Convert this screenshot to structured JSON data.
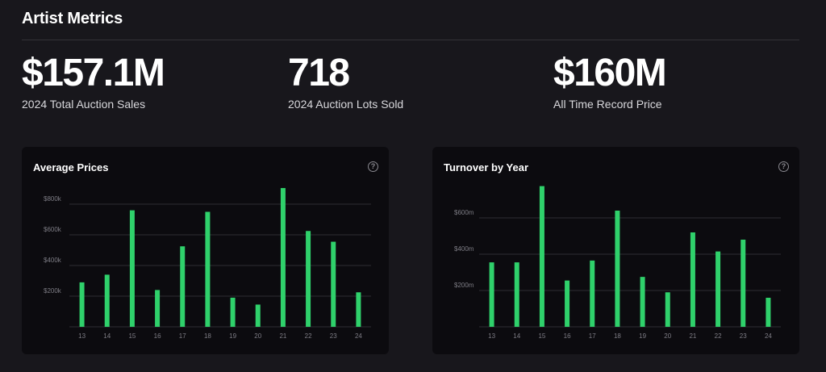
{
  "header": {
    "title": "Artist Metrics"
  },
  "metrics": [
    {
      "value": "$157.1M",
      "label": "2024 Total Auction Sales"
    },
    {
      "value": "718",
      "label": "2024 Auction Lots Sold"
    },
    {
      "value": "$160M",
      "label": "All Time Record Price"
    }
  ],
  "help_glyph": "?",
  "accent_color": "#2fd16b",
  "chart_data": [
    {
      "type": "bar",
      "title": "Average Prices",
      "categories": [
        "13",
        "14",
        "15",
        "16",
        "17",
        "18",
        "19",
        "20",
        "21",
        "22",
        "23",
        "24"
      ],
      "values": [
        290000,
        340000,
        760000,
        240000,
        525000,
        750000,
        190000,
        145000,
        905000,
        625000,
        555000,
        225000
      ],
      "yticks": [
        200000,
        400000,
        600000,
        800000
      ],
      "ytick_labels": [
        "$200k",
        "$400k",
        "$600k",
        "$800k"
      ],
      "ylim": [
        0,
        900000
      ],
      "grid": true,
      "legend": "none"
    },
    {
      "type": "bar",
      "title": "Turnover by Year",
      "categories": [
        "13",
        "14",
        "15",
        "16",
        "17",
        "18",
        "19",
        "20",
        "21",
        "22",
        "23",
        "24"
      ],
      "values": [
        355,
        355,
        775,
        255,
        365,
        640,
        275,
        190,
        520,
        415,
        480,
        160
      ],
      "yticks": [
        200,
        400,
        600
      ],
      "ytick_labels": [
        "$200m",
        "$400m",
        "$600m"
      ],
      "ylim": [
        0,
        760
      ],
      "grid": true,
      "legend": "none"
    }
  ]
}
